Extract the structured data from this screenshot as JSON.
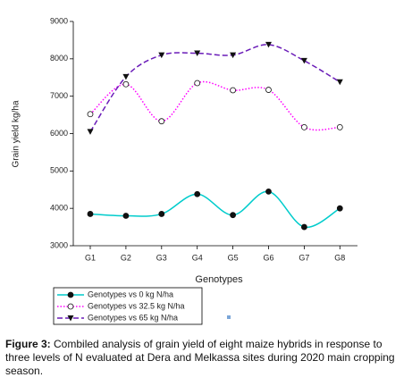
{
  "chart_data": {
    "type": "line",
    "x_label": "Genotypes",
    "y_label": "Grain yield kg/ha",
    "categories": [
      "G1",
      "G2",
      "G3",
      "G4",
      "G5",
      "G6",
      "G7",
      "G8"
    ],
    "ylim": [
      3000,
      9000
    ],
    "yticks": [
      3000,
      4000,
      5000,
      6000,
      7000,
      8000,
      9000
    ],
    "grid": false,
    "legend": "bottom-left",
    "series": [
      {
        "name": "Genotypes vs 0 kg N/ha",
        "color": "#00cccc",
        "dash": "solid",
        "marker": "filled-circle",
        "values": [
          3850,
          3800,
          3850,
          4380,
          3820,
          4450,
          3500,
          4000
        ]
      },
      {
        "name": "Genotypes vs 32.5 kg N/ha",
        "color": "#ff00ff",
        "dash": "dotted",
        "marker": "open-circle",
        "values": [
          6520,
          7320,
          6330,
          7350,
          7160,
          7170,
          6170,
          6170
        ]
      },
      {
        "name": "Genotypes vs 65 kg N/ha",
        "color": "#6a1cb8",
        "dash": "dashed",
        "marker": "filled-triangle-down",
        "values": [
          6050,
          7520,
          8100,
          8150,
          8100,
          8380,
          7950,
          7380
        ]
      }
    ]
  },
  "caption": {
    "label": "Figure 3:",
    "text": "Combiled analysis of grain yield of eight maize hybrids in response to three levels of N evaluated at Dera and Melkassa sites during 2020 main cropping season."
  }
}
